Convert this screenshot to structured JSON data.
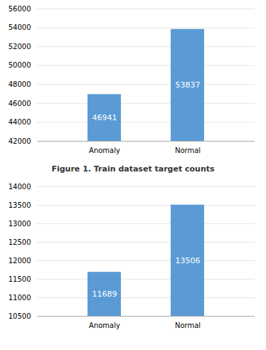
{
  "chart_data": [
    {
      "type": "bar",
      "categories": [
        "Anomaly",
        "Normal"
      ],
      "values": [
        46941,
        53837
      ],
      "color": "#5b9bd5",
      "ylim": [
        42000,
        56000
      ],
      "yticks": [
        42000,
        44000,
        46000,
        48000,
        50000,
        52000,
        54000,
        56000
      ],
      "grid": true,
      "data_labels": true,
      "caption": "Figure 1. Train dataset target counts"
    },
    {
      "type": "bar",
      "categories": [
        "Anomaly",
        "Normal"
      ],
      "values": [
        11689,
        13506
      ],
      "color": "#5b9bd5",
      "ylim": [
        10500,
        14000
      ],
      "yticks": [
        10500,
        11000,
        11500,
        12000,
        12500,
        13000,
        13500,
        14000
      ],
      "grid": true,
      "data_labels": true
    }
  ]
}
